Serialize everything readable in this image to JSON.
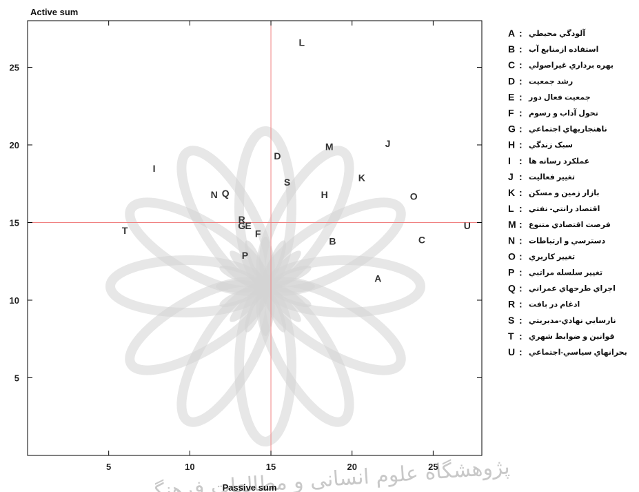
{
  "chart_data": {
    "type": "scatter",
    "xlabel": "Passive sum",
    "ylabel": "Active sum",
    "xlim": [
      0,
      28
    ],
    "ylim": [
      0,
      28
    ],
    "x_ticks": [
      5,
      10,
      15,
      20,
      25
    ],
    "y_ticks": [
      5,
      10,
      15,
      20,
      25
    ],
    "x_tick_labels": [
      "5",
      "10",
      "15",
      "20",
      "25"
    ],
    "y_tick_labels": [
      "5",
      "10",
      "15",
      "20",
      "25"
    ],
    "reference_lines": {
      "x": 15,
      "y": 15,
      "color": "#f08080"
    },
    "points": [
      {
        "label": "A",
        "x": 21.6,
        "y": 11.4
      },
      {
        "label": "B",
        "x": 18.8,
        "y": 13.8
      },
      {
        "label": "C",
        "x": 24.3,
        "y": 13.9
      },
      {
        "label": "D",
        "x": 15.4,
        "y": 19.3
      },
      {
        "label": "E",
        "x": 13.6,
        "y": 14.8
      },
      {
        "label": "F",
        "x": 14.2,
        "y": 14.3
      },
      {
        "label": "G",
        "x": 13.2,
        "y": 14.8
      },
      {
        "label": "H",
        "x": 18.3,
        "y": 16.8
      },
      {
        "label": "I",
        "x": 7.8,
        "y": 18.5
      },
      {
        "label": "J",
        "x": 22.2,
        "y": 20.1
      },
      {
        "label": "K",
        "x": 20.6,
        "y": 17.9
      },
      {
        "label": "L",
        "x": 16.9,
        "y": 26.6
      },
      {
        "label": "M",
        "x": 18.6,
        "y": 19.9
      },
      {
        "label": "N",
        "x": 11.5,
        "y": 16.8
      },
      {
        "label": "O",
        "x": 23.8,
        "y": 16.7
      },
      {
        "label": "P",
        "x": 13.4,
        "y": 12.9
      },
      {
        "label": "Q",
        "x": 12.2,
        "y": 16.9
      },
      {
        "label": "R",
        "x": 13.2,
        "y": 15.2
      },
      {
        "label": "S",
        "x": 16.0,
        "y": 17.6
      },
      {
        "label": "T",
        "x": 6.0,
        "y": 14.5
      },
      {
        "label": "U",
        "x": 27.1,
        "y": 14.8
      }
    ],
    "legend_placement": "right",
    "legend": [
      {
        "key": "A",
        "text": "آلودگي محيطي"
      },
      {
        "key": "B",
        "text": "استفاده ازمنابع آب"
      },
      {
        "key": "C",
        "text": "بهره برداري غيراصولي"
      },
      {
        "key": "D",
        "text": "رشد جمعيت"
      },
      {
        "key": "E",
        "text": "جمعيت فعال دور"
      },
      {
        "key": "F",
        "text": "تحول آداب و رسوم"
      },
      {
        "key": "G",
        "text": "ناهنجاريهاي اجتماعي"
      },
      {
        "key": "H",
        "text": "سبک زندگي"
      },
      {
        "key": "I",
        "text": "عملکرد رسانه ها"
      },
      {
        "key": "J",
        "text": "تغيير فعاليت"
      },
      {
        "key": "K",
        "text": "بازار زمين و مسکن"
      },
      {
        "key": "L",
        "text": "اقتصاد رانتي- نفتي"
      },
      {
        "key": "M",
        "text": "فرصت اقتصادي متنوع"
      },
      {
        "key": "N",
        "text": "دسترسي و ارتباطات"
      },
      {
        "key": "O",
        "text": "تغيير کاربري"
      },
      {
        "key": "P",
        "text": "تغيير سلسله مراتبي"
      },
      {
        "key": "Q",
        "text": "اجراي طرحهاي عمراني"
      },
      {
        "key": "R",
        "text": "ادغام در بافت"
      },
      {
        "key": "S",
        "text": "نارسايي نهادي-مديريتي"
      },
      {
        "key": "T",
        "text": "قوانين و ضوابط شهري"
      },
      {
        "key": "U",
        "text": "بحرانهاي سياسي-اجتماعي"
      }
    ],
    "watermark_text": "پژوهشگاه علوم انسانی و مطالعات فرهنگی"
  },
  "colors": {
    "ref_line": "#f08080",
    "axis": "#000000",
    "point_label": "#333333",
    "watermark": "#d4d4d4"
  }
}
